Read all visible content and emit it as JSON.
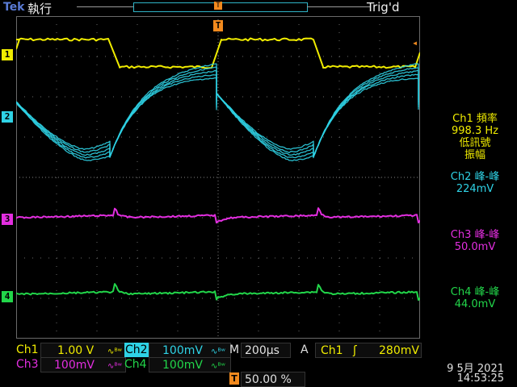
{
  "header": {
    "brand": "Tek",
    "run_state": "執行",
    "trigger_status": "Trig'd",
    "trigger_position_marker": "T"
  },
  "colors": {
    "ch1": "#f0ec00",
    "ch2": "#2fd3e6",
    "ch3": "#e32ee0",
    "ch4": "#22d64a",
    "trigger": "#f28a1e",
    "grid": "#6a6a6a"
  },
  "channels": {
    "ch1_marker": "1",
    "ch2_marker": "2",
    "ch3_marker": "3",
    "ch4_marker": "4"
  },
  "measurements": {
    "ch1": {
      "title": "Ch1 頻率",
      "value": "998.3 Hz",
      "note1": "低訊號",
      "note2": "振幅"
    },
    "ch2": {
      "title": "Ch2 峰-峰",
      "value": "224mV"
    },
    "ch3": {
      "title": "Ch3 峰-峰",
      "value": "50.0mV"
    },
    "ch4": {
      "title": "Ch4 峰-峰",
      "value": "44.0mV"
    }
  },
  "status_bar": {
    "ch1_label": "Ch1",
    "ch1_scale": "1.00 V",
    "ch1_coupling": "∿ᴮʷ",
    "ch2_label": "Ch2",
    "ch2_scale": "100mV",
    "ch2_coupling": "∿ᴮʷ",
    "ch3_label": "Ch3",
    "ch3_scale": "100mV",
    "ch3_coupling": "∿ᴮʷ",
    "ch4_label": "Ch4",
    "ch4_scale": "100mV",
    "ch4_coupling": "∿ᴮʷ",
    "timebase_label": "M",
    "timebase_value": "200µs",
    "trigger_mode": "A",
    "trigger_source": "Ch1",
    "trigger_slope": "ʃ",
    "trigger_level": "280mV",
    "trigger_pos_marker": "T",
    "trigger_position": "50.00 %",
    "date": "9 5月  2021",
    "time": "14:53:25"
  }
}
